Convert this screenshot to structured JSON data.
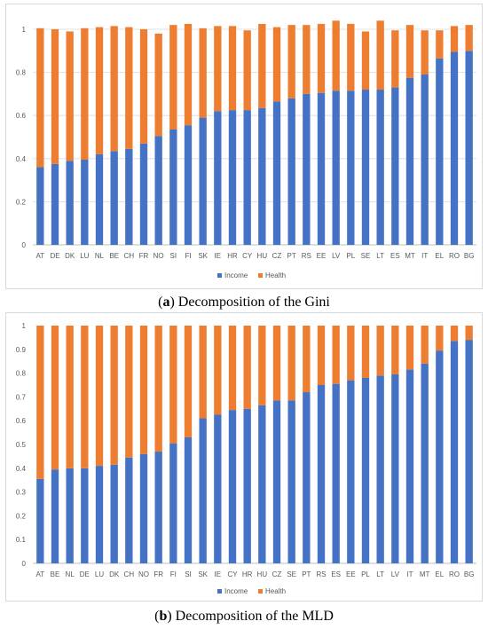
{
  "colors": {
    "income": "#4472C4",
    "health": "#ED7D31",
    "grid": "#d9d9d9",
    "axis": "#bfbfbf"
  },
  "captions": [
    {
      "label": "a",
      "text": " Decomposition of the Gini"
    },
    {
      "label": "b",
      "text": " Decomposition of the MLD"
    }
  ],
  "chart_data": [
    {
      "type": "bar",
      "stacked": true,
      "categories": [
        "AT",
        "DE",
        "DK",
        "LU",
        "NL",
        "BE",
        "CH",
        "FR",
        "NO",
        "SI",
        "FI",
        "SK",
        "IE",
        "HR",
        "CY",
        "HU",
        "CZ",
        "PT",
        "RS",
        "EE",
        "LV",
        "PL",
        "SE",
        "LT",
        "ES",
        "MT",
        "IT",
        "EL",
        "RO",
        "BG"
      ],
      "series": [
        {
          "name": "Income",
          "values": [
            0.36,
            0.375,
            0.39,
            0.395,
            0.42,
            0.435,
            0.445,
            0.47,
            0.505,
            0.535,
            0.555,
            0.59,
            0.62,
            0.625,
            0.625,
            0.635,
            0.665,
            0.68,
            0.7,
            0.705,
            0.715,
            0.715,
            0.72,
            0.72,
            0.73,
            0.775,
            0.79,
            0.865,
            0.895,
            0.9
          ]
        },
        {
          "name": "Health",
          "values": [
            0.645,
            0.625,
            0.6,
            0.61,
            0.59,
            0.58,
            0.565,
            0.53,
            0.475,
            0.485,
            0.47,
            0.415,
            0.395,
            0.39,
            0.37,
            0.39,
            0.345,
            0.34,
            0.32,
            0.32,
            0.325,
            0.31,
            0.27,
            0.32,
            0.265,
            0.245,
            0.205,
            0.13,
            0.12,
            0.12
          ]
        }
      ],
      "ylim": [
        0,
        1
      ],
      "yticks": [
        "0",
        "0.2",
        "0.4",
        "0.6",
        "0.8",
        "1"
      ],
      "yticks_values": [
        0,
        0.2,
        0.4,
        0.6,
        0.8,
        1
      ],
      "grid": true,
      "legend": "bottom"
    },
    {
      "type": "bar",
      "stacked": true,
      "categories": [
        "AT",
        "BE",
        "NL",
        "DE",
        "LU",
        "DK",
        "CH",
        "NO",
        "FR",
        "FI",
        "SI",
        "SK",
        "IE",
        "CY",
        "HR",
        "HU",
        "CZ",
        "SE",
        "PT",
        "RS",
        "ES",
        "EE",
        "PL",
        "LT",
        "LV",
        "IT",
        "MT",
        "EL",
        "RO",
        "BG"
      ],
      "series": [
        {
          "name": "Income",
          "values": [
            0.355,
            0.395,
            0.4,
            0.4,
            0.41,
            0.415,
            0.445,
            0.46,
            0.47,
            0.505,
            0.53,
            0.61,
            0.625,
            0.645,
            0.65,
            0.665,
            0.685,
            0.685,
            0.72,
            0.75,
            0.755,
            0.77,
            0.78,
            0.79,
            0.795,
            0.815,
            0.84,
            0.895,
            0.935,
            0.94
          ]
        },
        {
          "name": "Health",
          "values": [
            0.645,
            0.605,
            0.6,
            0.6,
            0.59,
            0.585,
            0.555,
            0.54,
            0.53,
            0.495,
            0.47,
            0.39,
            0.375,
            0.355,
            0.35,
            0.335,
            0.315,
            0.315,
            0.28,
            0.25,
            0.245,
            0.23,
            0.22,
            0.21,
            0.205,
            0.185,
            0.16,
            0.105,
            0.065,
            0.06
          ]
        }
      ],
      "ylim": [
        0,
        1
      ],
      "yticks": [
        "0",
        "0.1",
        "0.2",
        "0.3",
        "0.4",
        "0.5",
        "0.6",
        "0.7",
        "0.8",
        "0.9",
        "1"
      ],
      "yticks_values": [
        0,
        0.1,
        0.2,
        0.3,
        0.4,
        0.5,
        0.6,
        0.7,
        0.8,
        0.9,
        1
      ],
      "grid": false,
      "legend": "bottom"
    }
  ]
}
